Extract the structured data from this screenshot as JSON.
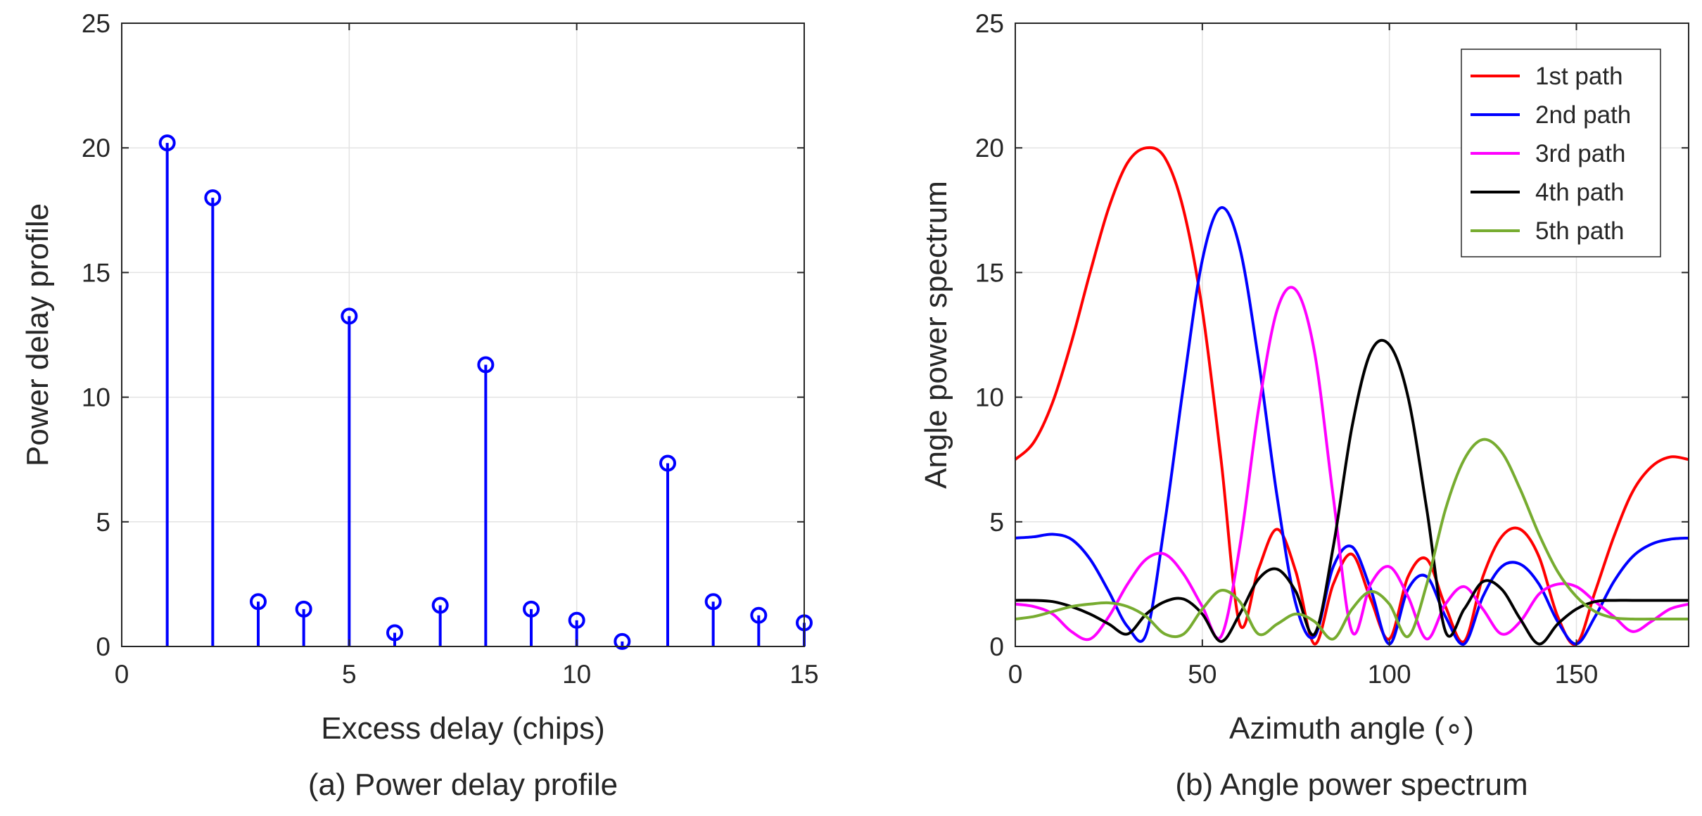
{
  "chart_data": [
    {
      "type": "stem",
      "caption": "(a) Power delay profile",
      "xlabel": "Excess delay (chips)",
      "ylabel": "Power delay profile",
      "xlim": [
        0,
        15
      ],
      "ylim": [
        0,
        25
      ],
      "xticks": [
        "0",
        "5",
        "10",
        "15"
      ],
      "yticks": [
        "0",
        "5",
        "10",
        "15",
        "20",
        "25"
      ],
      "grid": true,
      "color": "#0000ff",
      "x": [
        1,
        2,
        3,
        4,
        5,
        6,
        7,
        8,
        9,
        10,
        11,
        12,
        13,
        14,
        15
      ],
      "values": [
        20.2,
        18.0,
        1.8,
        1.5,
        13.25,
        0.55,
        1.65,
        11.3,
        1.5,
        1.05,
        0.2,
        7.35,
        1.8,
        1.25,
        0.95
      ]
    },
    {
      "type": "line",
      "caption": "(b) Angle power spectrum",
      "xlabel": "Azimuth angle (∘)",
      "ylabel": "Angle power spectrum",
      "xlim": [
        0,
        180
      ],
      "ylim": [
        0,
        25
      ],
      "xticks": [
        "0",
        "50",
        "100",
        "150"
      ],
      "yticks": [
        "0",
        "5",
        "10",
        "15",
        "20",
        "25"
      ],
      "grid": true,
      "legend_position": "top-right",
      "x": [
        0,
        5,
        10,
        15,
        20,
        25,
        30,
        35,
        40,
        45,
        50,
        55,
        60,
        65,
        70,
        75,
        80,
        85,
        90,
        95,
        100,
        105,
        110,
        115,
        120,
        125,
        130,
        135,
        140,
        145,
        150,
        155,
        160,
        165,
        170,
        175,
        180
      ],
      "series": [
        {
          "name": "1st path",
          "color": "#ff0000",
          "values": [
            7.5,
            8.2,
            9.8,
            12.2,
            15.0,
            17.6,
            19.4,
            20.0,
            19.6,
            17.5,
            13.5,
            7.5,
            0.9,
            3.1,
            4.7,
            3.0,
            0.1,
            2.5,
            3.7,
            1.9,
            0.3,
            2.8,
            3.5,
            1.6,
            0.2,
            2.8,
            4.4,
            4.7,
            3.6,
            1.2,
            0.1,
            2.2,
            4.4,
            6.2,
            7.2,
            7.6,
            7.5
          ]
        },
        {
          "name": "2nd path",
          "color": "#0000ff",
          "values": [
            4.35,
            4.4,
            4.5,
            4.3,
            3.5,
            2.2,
            0.8,
            0.5,
            5.0,
            10.5,
            15.5,
            17.6,
            16.0,
            11.5,
            6.0,
            1.7,
            0.4,
            3.2,
            4.0,
            2.3,
            0.1,
            2.3,
            2.8,
            1.2,
            0.1,
            2.0,
            3.2,
            3.3,
            2.5,
            1.0,
            0.1,
            1.2,
            2.6,
            3.6,
            4.1,
            4.3,
            4.35
          ]
        },
        {
          "name": "3rd path",
          "color": "#ff00ff",
          "values": [
            1.7,
            1.6,
            1.3,
            0.6,
            0.3,
            1.2,
            2.5,
            3.5,
            3.7,
            2.9,
            1.6,
            0.4,
            4.0,
            9.5,
            13.5,
            14.3,
            11.8,
            6.0,
            0.6,
            2.5,
            3.2,
            2.0,
            0.3,
            1.7,
            2.4,
            1.5,
            0.5,
            1.0,
            2.1,
            2.5,
            2.4,
            1.8,
            1.2,
            0.6,
            1.0,
            1.5,
            1.7
          ]
        },
        {
          "name": "4th path",
          "color": "#000000",
          "values": [
            1.85,
            1.85,
            1.8,
            1.6,
            1.3,
            0.9,
            0.5,
            1.3,
            1.8,
            1.9,
            1.3,
            0.2,
            1.3,
            2.7,
            3.1,
            2.2,
            0.5,
            4.0,
            8.8,
            11.8,
            12.1,
            10.0,
            5.5,
            0.6,
            1.5,
            2.6,
            2.3,
            1.1,
            0.1,
            0.9,
            1.5,
            1.8,
            1.85,
            1.85,
            1.85,
            1.85,
            1.85
          ]
        },
        {
          "name": "5th path",
          "color": "#77ac30",
          "values": [
            1.1,
            1.2,
            1.4,
            1.6,
            1.7,
            1.75,
            1.6,
            1.2,
            0.5,
            0.5,
            1.5,
            2.25,
            1.8,
            0.5,
            0.9,
            1.3,
            1.0,
            0.3,
            1.5,
            2.2,
            1.7,
            0.4,
            2.5,
            5.5,
            7.5,
            8.3,
            7.8,
            6.3,
            4.5,
            3.0,
            2.0,
            1.4,
            1.15,
            1.1,
            1.1,
            1.1,
            1.1
          ]
        }
      ]
    }
  ]
}
